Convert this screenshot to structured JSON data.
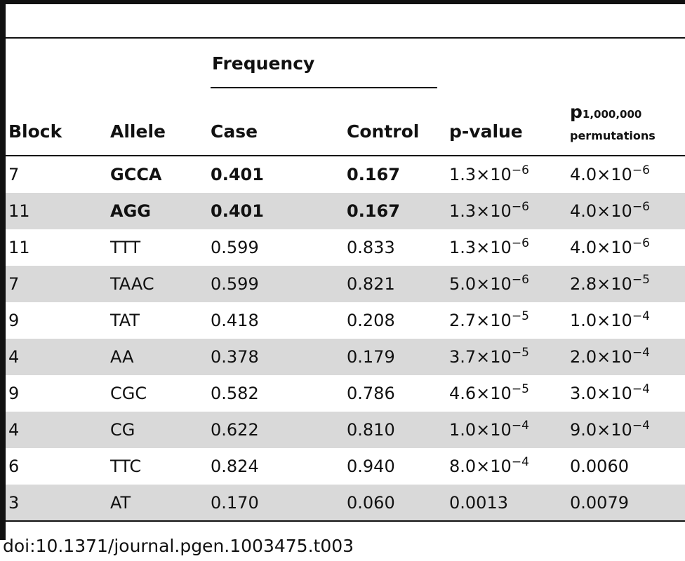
{
  "table": {
    "header": {
      "group_label": "Frequency",
      "block": "Block",
      "allele": "Allele",
      "case": "Case",
      "control": "Control",
      "pvalue": "p-value",
      "perm_p": "p",
      "perm_sub": "1,000,000",
      "perm_label": "permutations"
    },
    "rows": [
      {
        "block": "7",
        "allele": "GCCA",
        "case": "0.401",
        "control": "0.167",
        "pvalue": "1.3×10−6",
        "perm": "4.0×10−6",
        "bold": true
      },
      {
        "block": "11",
        "allele": "AGG",
        "case": "0.401",
        "control": "0.167",
        "pvalue": "1.3×10−6",
        "perm": "4.0×10−6",
        "bold": true
      },
      {
        "block": "11",
        "allele": "TTT",
        "case": "0.599",
        "control": "0.833",
        "pvalue": "1.3×10−6",
        "perm": "4.0×10−6",
        "bold": false
      },
      {
        "block": "7",
        "allele": "TAAC",
        "case": "0.599",
        "control": "0.821",
        "pvalue": "5.0×10−6",
        "perm": "2.8×10−5",
        "bold": false
      },
      {
        "block": "9",
        "allele": "TAT",
        "case": "0.418",
        "control": "0.208",
        "pvalue": "2.7×10−5",
        "perm": "1.0×10−4",
        "bold": false
      },
      {
        "block": "4",
        "allele": "AA",
        "case": "0.378",
        "control": "0.179",
        "pvalue": "3.7×10−5",
        "perm": "2.0×10−4",
        "bold": false
      },
      {
        "block": "9",
        "allele": "CGC",
        "case": "0.582",
        "control": "0.786",
        "pvalue": "4.6×10−5",
        "perm": "3.0×10−4",
        "bold": false
      },
      {
        "block": "4",
        "allele": "CG",
        "case": "0.622",
        "control": "0.810",
        "pvalue": "1.0×10−4",
        "perm": "9.0×10−4",
        "bold": false
      },
      {
        "block": "6",
        "allele": "TTC",
        "case": "0.824",
        "control": "0.940",
        "pvalue": "8.0×10−4",
        "perm": "0.0060",
        "bold": false
      },
      {
        "block": "3",
        "allele": "AT",
        "case": "0.170",
        "control": "0.060",
        "pvalue": "0.0013",
        "perm": "0.0079",
        "bold": false
      }
    ]
  },
  "caption": "doi:10.1371/journal.pgen.1003475.t003",
  "colors": {
    "rule": "#111111",
    "row_shade": "#d9d9d9",
    "text": "#111111"
  }
}
